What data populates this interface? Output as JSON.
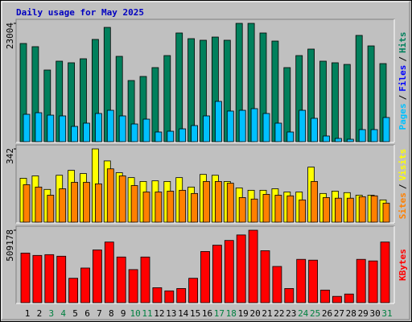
{
  "chart_data": [
    {
      "type": "bar",
      "title": "Daily usage for May 2025",
      "ylim": [
        0,
        23004
      ],
      "yticks": [
        23004
      ],
      "legend_separator": "/",
      "series": [
        {
          "name": "Pages",
          "color": "#00c0ff",
          "values": [
            5320,
            5630,
            5160,
            5010,
            2970,
            3600,
            5480,
            6100,
            5010,
            3440,
            4380,
            1880,
            2030,
            2500,
            3130,
            5010,
            7830,
            5950,
            6100,
            6420,
            5480,
            3600,
            1880,
            6100,
            4540,
            1100,
            630,
            470,
            2350,
            2350,
            4700
          ]
        },
        {
          "name": "Files",
          "color": "#0000ff"
        },
        {
          "name": "Hits",
          "color": "#00805c",
          "values": [
            19090,
            18470,
            13930,
            15650,
            15340,
            16120,
            19880,
            22220,
            16590,
            11890,
            12680,
            14400,
            16740,
            21130,
            20030,
            19720,
            20340,
            19720,
            23004,
            23004,
            21130,
            19560,
            14400,
            16740,
            18000,
            15650,
            15340,
            15020,
            20660,
            18620,
            15180
          ]
        }
      ]
    },
    {
      "type": "bar",
      "ylim": [
        0,
        342
      ],
      "yticks": [
        342
      ],
      "legend_separator": "/",
      "series": [
        {
          "name": "Sites",
          "color": "#ff8000",
          "values": [
            175,
            164,
            126,
            156,
            186,
            186,
            179,
            249,
            216,
            171,
            141,
            141,
            145,
            149,
            134,
            190,
            190,
            182,
            115,
            108,
            130,
            126,
            123,
            104,
            190,
            115,
            112,
            112,
            119,
            123,
            89
          ]
        },
        {
          "name": "Visits",
          "color": "#ffff00",
          "values": [
            205,
            216,
            153,
            219,
            242,
            227,
            342,
            286,
            231,
            208,
            190,
            193,
            190,
            208,
            164,
            223,
            219,
            190,
            160,
            149,
            149,
            156,
            141,
            141,
            257,
            134,
            145,
            138,
            126,
            126,
            104
          ]
        }
      ]
    },
    {
      "type": "bar",
      "ylim": [
        0,
        509178
      ],
      "yticks": [
        509178
      ],
      "categories": [
        "1",
        "2",
        "3",
        "4",
        "5",
        "6",
        "7",
        "8",
        "9",
        "10",
        "11",
        "12",
        "13",
        "14",
        "15",
        "16",
        "17",
        "18",
        "19",
        "20",
        "21",
        "22",
        "23",
        "24",
        "25",
        "26",
        "27",
        "28",
        "29",
        "30",
        "31"
      ],
      "category_colors": [
        "#000000",
        "#000000",
        "#008040",
        "#008040",
        "#000000",
        "#000000",
        "#000000",
        "#000000",
        "#000000",
        "#008040",
        "#008040",
        "#000000",
        "#000000",
        "#000000",
        "#000000",
        "#000000",
        "#008040",
        "#008040",
        "#000000",
        "#000000",
        "#000000",
        "#000000",
        "#000000",
        "#008040",
        "#008040",
        "#000000",
        "#000000",
        "#000000",
        "#000000",
        "#000000",
        "#008040"
      ],
      "series": [
        {
          "name": "KBytes",
          "color": "#ff0000",
          "values": [
            348700,
            332100,
            337600,
            326600,
            171600,
            243500,
            370800,
            426200,
            321000,
            232500,
            321000,
            105200,
            83000,
            99600,
            171600,
            359800,
            404100,
            437300,
            476000,
            509178,
            365300,
            254600,
            99600,
            304400,
            298900,
            88600,
            44300,
            60900,
            304400,
            293400,
            426200
          ]
        }
      ]
    }
  ]
}
